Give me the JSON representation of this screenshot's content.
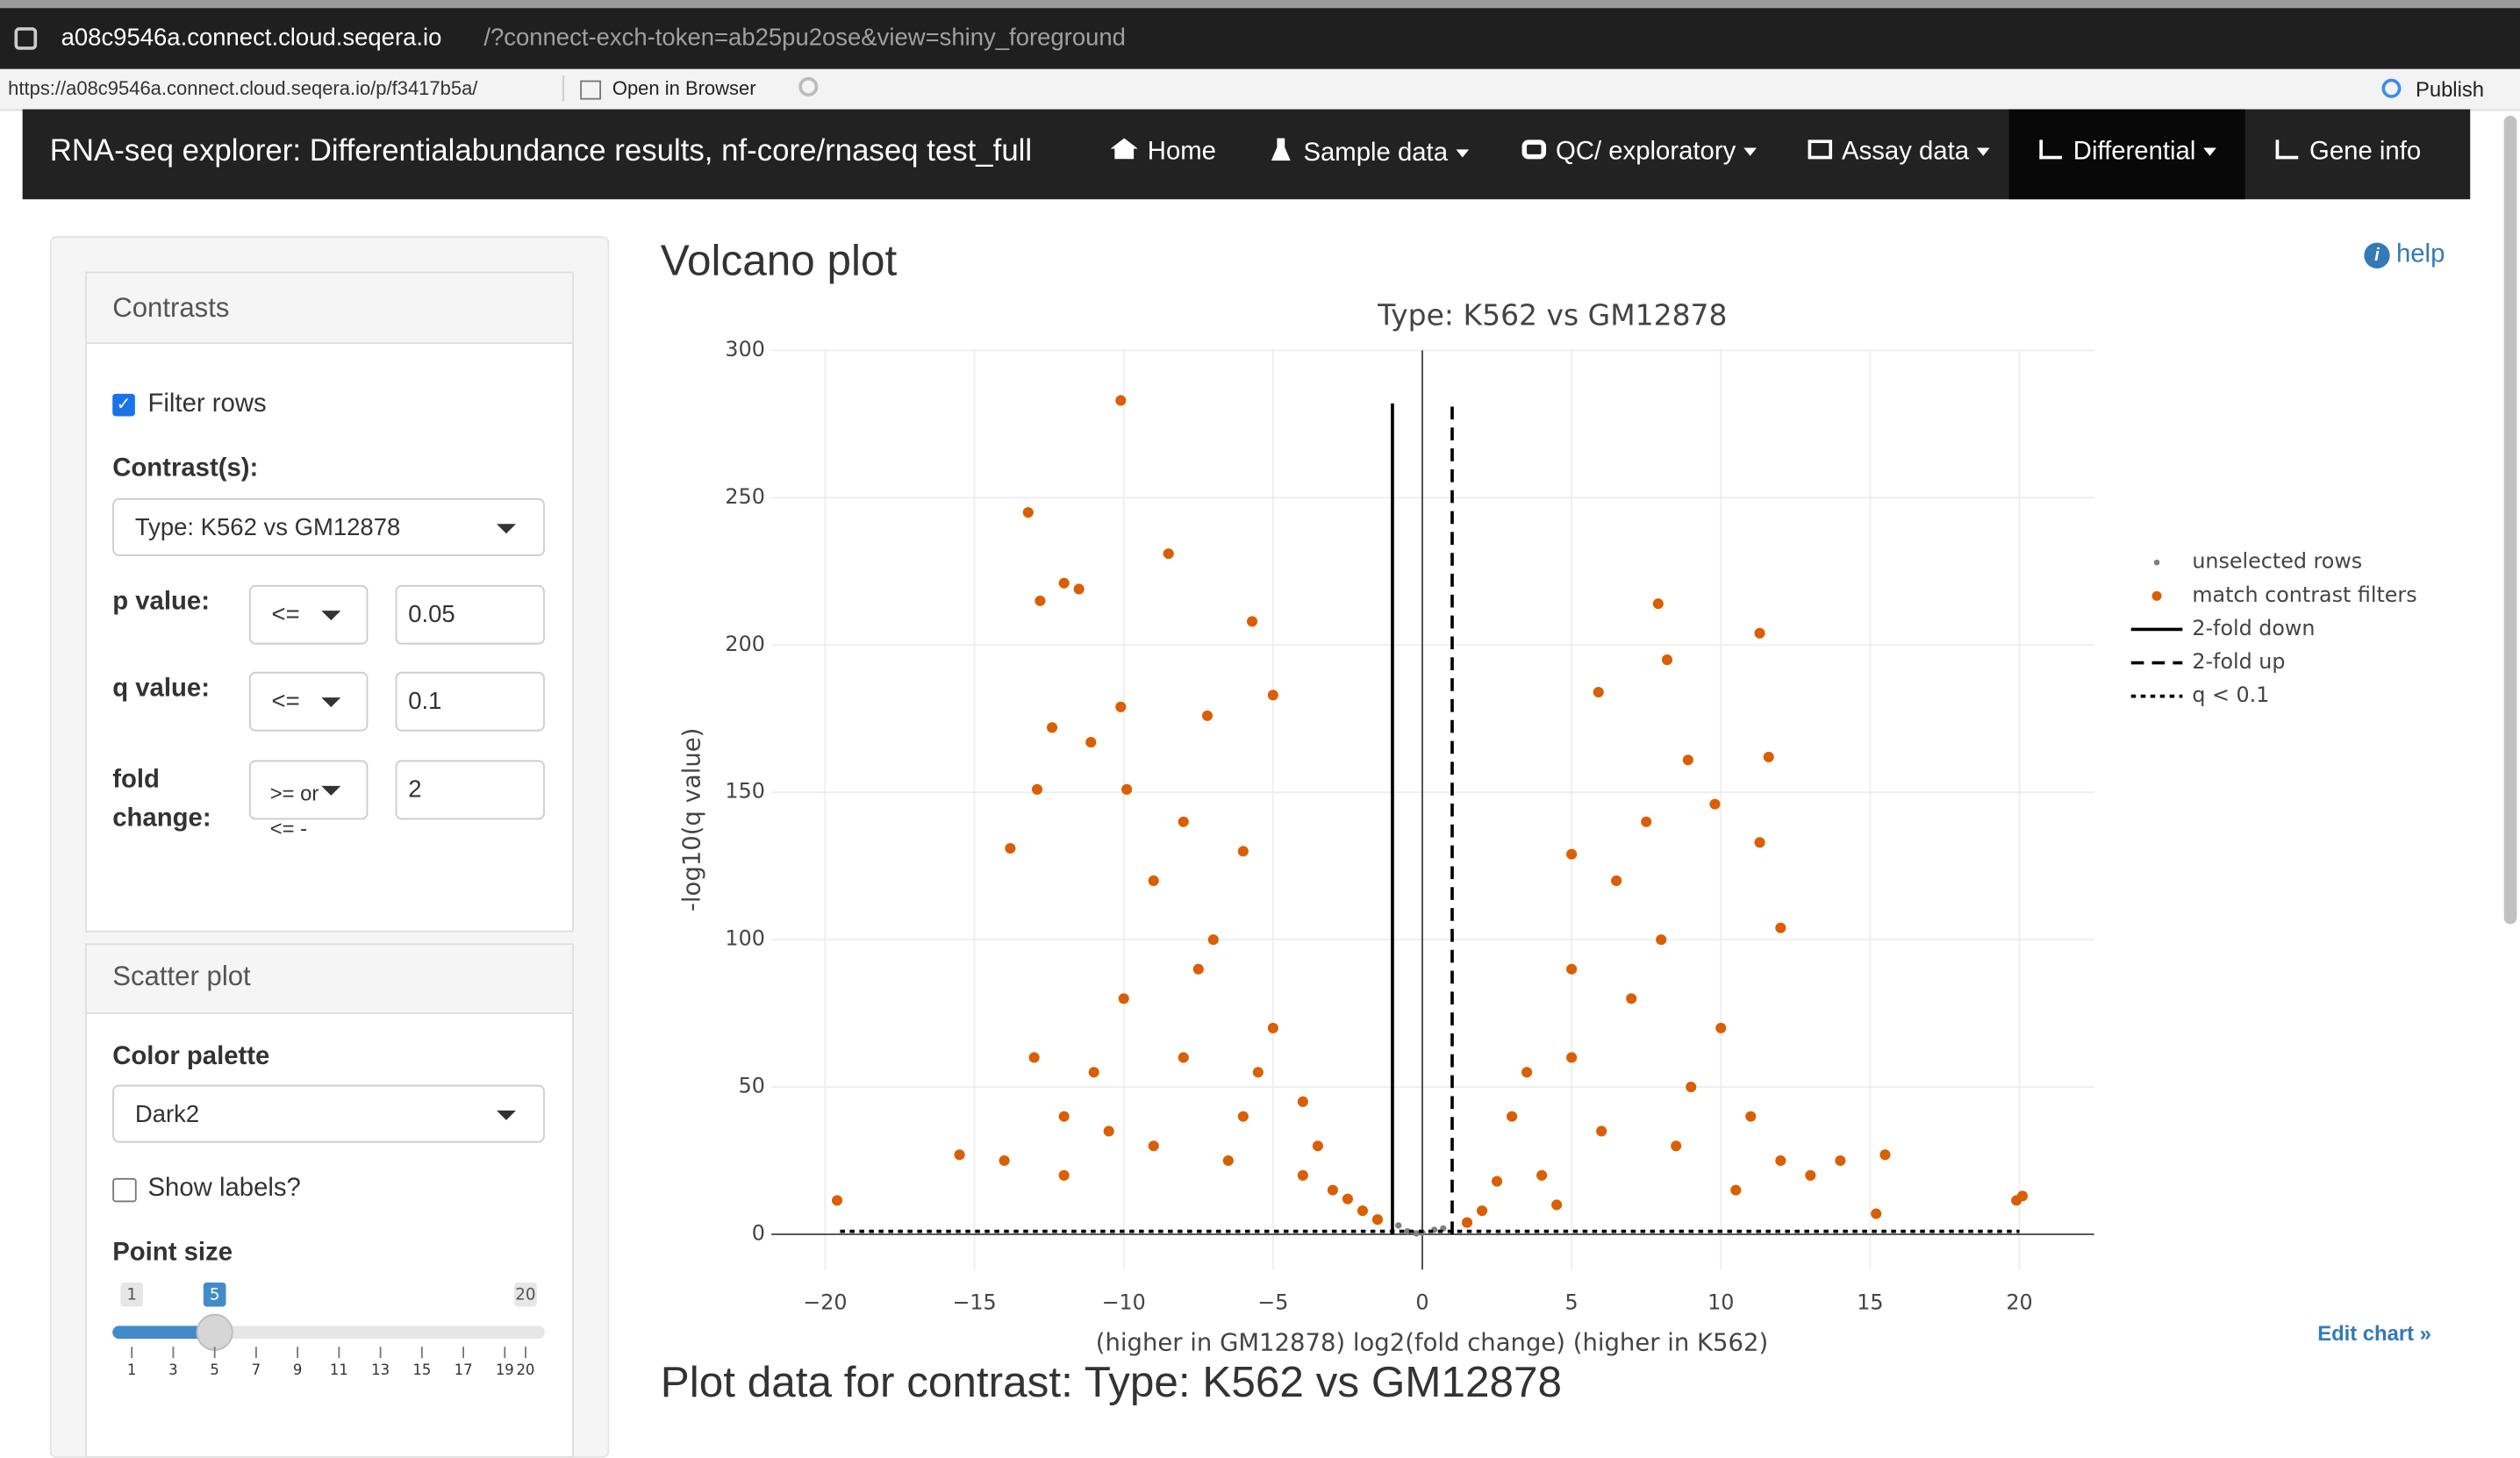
{
  "browser": {
    "url_host": "a08c9546a.connect.cloud.seqera.io",
    "url_rest": "/?connect-exch-token=ab25pu2ose&view=shiny_foreground",
    "status_url": "https://a08c9546a.connect.cloud.seqera.io/p/f3417b5a/",
    "open_in_browser": "Open in Browser",
    "publish": "Publish"
  },
  "navbar": {
    "title": "RNA-seq explorer: Differentialabundance results, nf-core/rnaseq test_full",
    "items": [
      "Home",
      "Sample data",
      "QC/ exploratory",
      "Assay data",
      "Differential",
      "Gene info"
    ]
  },
  "sidebar": {
    "contrasts": {
      "title": "Contrasts",
      "filter_rows": "Filter rows",
      "contrast_label": "Contrast(s):",
      "contrast_value": "Type: K562 vs GM12878",
      "p_label": "p value:",
      "p_op": "<=",
      "p_value": "0.05",
      "q_label": "q value:",
      "q_op": "<=",
      "q_value": "0.1",
      "fc_label": "fold change:",
      "fc_op": ">= or <= -",
      "fc_value": "2"
    },
    "scatter": {
      "title": "Scatter plot",
      "palette_label": "Color palette",
      "palette_value": "Dark2",
      "show_labels": "Show labels?",
      "point_size_label": "Point size",
      "slider": {
        "min": 1,
        "max": 20,
        "value": 5,
        "ticks": [
          1,
          3,
          5,
          7,
          9,
          11,
          13,
          15,
          17,
          19,
          20
        ]
      }
    }
  },
  "main": {
    "heading": "Volcano plot",
    "help": "help",
    "edit_chart": "Edit chart »",
    "table_heading": "Plot data for contrast: Type: K562 vs GM12878"
  },
  "chart_data": {
    "type": "scatter",
    "title": "Type: K562 vs GM12878",
    "x_label": "(higher in GM12878)  log2(fold change)  (higher in K562)",
    "y_label": "-log10(q value)",
    "xlim": [
      -21.8,
      22.5
    ],
    "ylim": [
      -12,
      300
    ],
    "xticks": [
      {
        "value": -20,
        "label": "−20"
      },
      {
        "value": -15,
        "label": "−15"
      },
      {
        "value": -10,
        "label": "−10"
      },
      {
        "value": -5,
        "label": "−5"
      },
      0,
      5,
      10,
      15,
      20
    ],
    "yticks": [
      0,
      50,
      100,
      150,
      200,
      250,
      300
    ],
    "grid": true,
    "zeroline": true,
    "legend": "right",
    "series": [
      {
        "name": "unselected rows",
        "color": "#808080",
        "mode": "markers",
        "x": [
          -0.5,
          0,
          0.4,
          -0.8,
          0.7,
          -0.2
        ],
        "values": [
          1,
          0.5,
          1.5,
          3,
          2,
          0.3
        ]
      },
      {
        "name": "match contrast filters",
        "color": "#d95f02",
        "mode": "markers",
        "x": [
          -10.1,
          -13.2,
          -8.5,
          -12.0,
          -11.5,
          -12.8,
          -5.7,
          -5.0,
          -7.2,
          -10.1,
          -12.4,
          -11.1,
          -12.9,
          -9.9,
          -13.8,
          -19.6,
          -15.5,
          7.9,
          11.3,
          8.2,
          5.9,
          8.9,
          11.6,
          9.8,
          11.3,
          12.0,
          5.0,
          15.5,
          19.9,
          20.1,
          15.2,
          -8,
          -6,
          -4,
          -10,
          -7,
          -9,
          -5,
          -3,
          -2,
          -12,
          -14,
          -11,
          -6,
          -8,
          -4,
          -7.5,
          -3.5,
          -2.5,
          -13,
          -10.5,
          -6.5,
          -5.5,
          -1.5,
          -9,
          -12,
          3,
          5,
          7,
          8,
          4,
          6,
          9,
          10,
          2,
          1.5,
          11,
          12,
          13,
          14,
          6.5,
          7.5,
          5,
          3.5,
          8.5,
          10.5,
          4.5,
          2.5
        ],
        "values": [
          283,
          245,
          231,
          221,
          219,
          215,
          208,
          183,
          176,
          179,
          172,
          167,
          151,
          151,
          131,
          11.5,
          27,
          214,
          204,
          195,
          184,
          161,
          162,
          146,
          133,
          104,
          129,
          27,
          11.5,
          13,
          7,
          60,
          40,
          20,
          80,
          100,
          120,
          70,
          15,
          8,
          40,
          25,
          55,
          130,
          140,
          45,
          90,
          30,
          12,
          60,
          35,
          25,
          55,
          5,
          30,
          20,
          40,
          60,
          80,
          100,
          20,
          35,
          50,
          70,
          8,
          4,
          40,
          25,
          20,
          25,
          120,
          140,
          90,
          55,
          30,
          15,
          10,
          18
        ]
      },
      {
        "name": "2-fold down",
        "color": "#000000",
        "mode": "lines",
        "dash": "solid",
        "x": [
          -1,
          -1
        ],
        "values": [
          0,
          282
        ]
      },
      {
        "name": "2-fold up",
        "color": "#000000",
        "mode": "lines",
        "dash": "dash",
        "x": [
          1,
          1
        ],
        "values": [
          0,
          283
        ]
      },
      {
        "name": "q < 0.1",
        "color": "#000000",
        "mode": "lines",
        "dash": "dot",
        "x": [
          -19.5,
          20
        ],
        "values": [
          1,
          1
        ]
      }
    ]
  }
}
